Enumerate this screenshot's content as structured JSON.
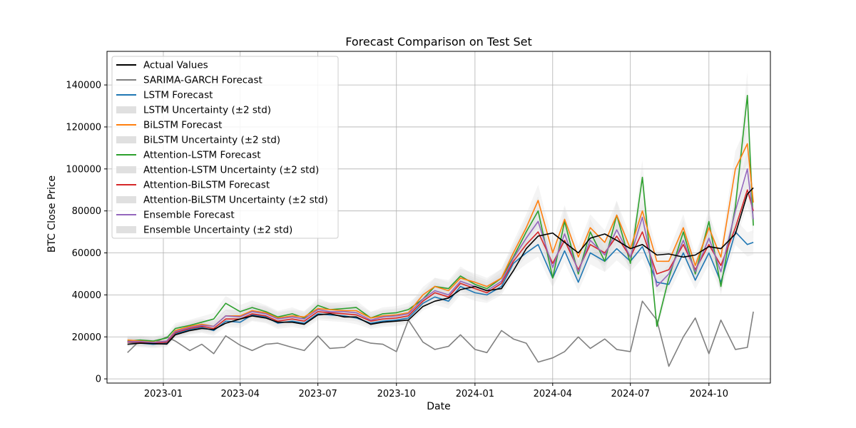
{
  "chart_data": {
    "type": "line",
    "title": "Forecast Comparison on Test Set",
    "xlabel": "Date",
    "ylabel": "BTC Close Price",
    "x_tick_labels": [
      "2023-01",
      "2023-04",
      "2023-07",
      "2023-10",
      "2024-01",
      "2024-04",
      "2024-07",
      "2024-10"
    ],
    "x_tick_dates": [
      "2023-01-01",
      "2023-04-01",
      "2023-07-01",
      "2023-10-01",
      "2024-01-01",
      "2024-04-01",
      "2024-07-01",
      "2024-10-01"
    ],
    "x_range": [
      "2022-10-27",
      "2024-12-12"
    ],
    "y_ticks": [
      0,
      20000,
      40000,
      60000,
      80000,
      100000,
      120000,
      140000
    ],
    "y_tick_labels": [
      "0",
      "20000",
      "40000",
      "60000",
      "80000",
      "100000",
      "120000",
      "140000"
    ],
    "ylim": [
      -2000,
      156000
    ],
    "grid": true,
    "legend_position": "top-left",
    "legend": [
      {
        "label": "Actual Values",
        "kind": "line",
        "color": "#000000"
      },
      {
        "label": "SARIMA-GARCH Forecast",
        "kind": "line",
        "color": "#808080"
      },
      {
        "label": "LSTM Forecast",
        "kind": "line",
        "color": "#1f77b4"
      },
      {
        "label": "LSTM Uncertainty (±2 std)",
        "kind": "band",
        "color": "#d3d3d3"
      },
      {
        "label": "BiLSTM Forecast",
        "kind": "line",
        "color": "#ff7f0e"
      },
      {
        "label": "BiLSTM Uncertainty (±2 std)",
        "kind": "band",
        "color": "#d3d3d3"
      },
      {
        "label": "Attention-LSTM Forecast",
        "kind": "line",
        "color": "#2ca02c"
      },
      {
        "label": "Attention-LSTM Uncertainty (±2 std)",
        "kind": "band",
        "color": "#d3d3d3"
      },
      {
        "label": "Attention-BiLSTM Forecast",
        "kind": "line",
        "color": "#d62728"
      },
      {
        "label": "Attention-BiLSTM Uncertainty (±2 std)",
        "kind": "band",
        "color": "#d3d3d3"
      },
      {
        "label": "Ensemble Forecast",
        "kind": "line",
        "color": "#9467bd"
      },
      {
        "label": "Ensemble Uncertainty (±2 std)",
        "kind": "band",
        "color": "#d3d3d3"
      }
    ],
    "x": [
      "2022-11-20",
      "2022-12-05",
      "2022-12-20",
      "2023-01-05",
      "2023-01-15",
      "2023-02-01",
      "2023-02-15",
      "2023-03-01",
      "2023-03-15",
      "2023-04-01",
      "2023-04-15",
      "2023-05-01",
      "2023-05-15",
      "2023-06-01",
      "2023-06-15",
      "2023-07-01",
      "2023-07-15",
      "2023-08-01",
      "2023-08-15",
      "2023-09-01",
      "2023-09-15",
      "2023-10-01",
      "2023-10-15",
      "2023-11-01",
      "2023-11-15",
      "2023-12-01",
      "2023-12-15",
      "2024-01-01",
      "2024-01-15",
      "2024-02-01",
      "2024-02-15",
      "2024-03-01",
      "2024-03-15",
      "2024-04-01",
      "2024-04-15",
      "2024-05-01",
      "2024-05-15",
      "2024-06-01",
      "2024-06-15",
      "2024-07-01",
      "2024-07-15",
      "2024-08-01",
      "2024-08-15",
      "2024-09-01",
      "2024-09-15",
      "2024-10-01",
      "2024-10-15",
      "2024-11-01",
      "2024-11-15",
      "2024-11-22"
    ],
    "series": [
      {
        "name": "Actual Values",
        "color": "#000000",
        "values": [
          16500,
          17000,
          16800,
          16600,
          21000,
          23000,
          24000,
          23500,
          26500,
          28500,
          30000,
          29000,
          27000,
          27000,
          26000,
          30500,
          31000,
          29500,
          29500,
          26000,
          27000,
          27500,
          28000,
          34500,
          37000,
          38500,
          42500,
          44000,
          42000,
          43000,
          51500,
          62000,
          68000,
          69500,
          65000,
          60000,
          67000,
          69000,
          66000,
          62000,
          64000,
          59000,
          59500,
          58000,
          59000,
          63000,
          62000,
          69000,
          88000,
          91000
        ]
      },
      {
        "name": "SARIMA-GARCH Forecast",
        "color": "#808080",
        "values": [
          12500,
          18500,
          17000,
          20000,
          18000,
          13500,
          16500,
          12000,
          20500,
          16000,
          13500,
          16500,
          17000,
          15000,
          13500,
          20500,
          14500,
          15000,
          19000,
          17000,
          16500,
          13000,
          28000,
          17500,
          14000,
          15500,
          21000,
          14000,
          12500,
          23000,
          19000,
          17000,
          8000,
          10000,
          13000,
          20000,
          14500,
          19000,
          14000,
          13000,
          37000,
          28000,
          6000,
          20000,
          29000,
          12000,
          28000,
          14000,
          15000,
          32000
        ]
      },
      {
        "name": "LSTM Forecast",
        "color": "#1f77b4",
        "values": [
          17500,
          17000,
          16500,
          17000,
          21500,
          23500,
          24500,
          23000,
          27500,
          27000,
          30500,
          29500,
          26500,
          27500,
          26500,
          31000,
          30500,
          30000,
          29000,
          26500,
          27500,
          28000,
          29000,
          36000,
          39000,
          37000,
          44000,
          41000,
          40000,
          44000,
          55000,
          60000,
          64000,
          48000,
          61000,
          46000,
          60000,
          56000,
          62000,
          56000,
          63000,
          46000,
          45000,
          60000,
          47000,
          60000,
          46000,
          70000,
          64000,
          65000
        ]
      },
      {
        "name": "BiLSTM Forecast",
        "color": "#ff7f0e",
        "values": [
          18500,
          18000,
          17500,
          18000,
          23000,
          25000,
          26000,
          25000,
          30000,
          30000,
          32500,
          31500,
          29000,
          30000,
          29500,
          33500,
          33000,
          32500,
          32500,
          29000,
          30000,
          30500,
          31500,
          40000,
          44000,
          42000,
          48000,
          46000,
          44000,
          48000,
          60000,
          72000,
          85000,
          60000,
          76000,
          58000,
          72000,
          65000,
          78000,
          62000,
          80000,
          56000,
          56000,
          72000,
          54000,
          72000,
          58000,
          100000,
          112000,
          84000
        ]
      },
      {
        "name": "Attention-LSTM Forecast",
        "color": "#2ca02c",
        "values": [
          18000,
          18500,
          18000,
          19500,
          24000,
          25500,
          27000,
          28500,
          36000,
          32000,
          34000,
          32000,
          29500,
          31000,
          29000,
          35000,
          33000,
          33500,
          34000,
          29000,
          31000,
          31500,
          33000,
          38000,
          44000,
          43000,
          49000,
          45000,
          43000,
          48000,
          58000,
          70000,
          80000,
          48000,
          75000,
          50000,
          70000,
          56000,
          78000,
          55000,
          96000,
          25000,
          48000,
          70000,
          50000,
          75000,
          44000,
          82000,
          135000,
          73000
        ]
      },
      {
        "name": "Attention-BiLSTM Forecast",
        "color": "#d62728",
        "values": [
          17500,
          17500,
          17000,
          17500,
          22000,
          24000,
          25000,
          24000,
          28500,
          28500,
          31000,
          30000,
          27500,
          28500,
          27500,
          32000,
          31500,
          31000,
          30500,
          27500,
          28500,
          29000,
          30000,
          37000,
          41000,
          39000,
          45500,
          43000,
          41000,
          45500,
          56000,
          64000,
          70000,
          55000,
          66000,
          52000,
          64000,
          60000,
          68000,
          58000,
          70000,
          50000,
          52000,
          64000,
          52000,
          64000,
          54000,
          72000,
          90000,
          80000
        ]
      },
      {
        "name": "Ensemble Forecast",
        "color": "#9467bd",
        "values": [
          17800,
          17800,
          17300,
          18000,
          22500,
          24500,
          25500,
          25000,
          30000,
          29500,
          32000,
          31000,
          28500,
          29500,
          28500,
          33000,
          32000,
          32000,
          31500,
          28000,
          29500,
          30000,
          31000,
          38000,
          42000,
          40000,
          46500,
          44000,
          42000,
          46500,
          57500,
          67000,
          75000,
          53000,
          69000,
          51000,
          66000,
          59000,
          71000,
          58000,
          77000,
          44000,
          50000,
          66000,
          51000,
          67000,
          51000,
          80000,
          100000,
          76000
        ]
      }
    ],
    "uncertainty_band": {
      "color": "#d3d3d3",
      "opacity": 0.55
    }
  }
}
